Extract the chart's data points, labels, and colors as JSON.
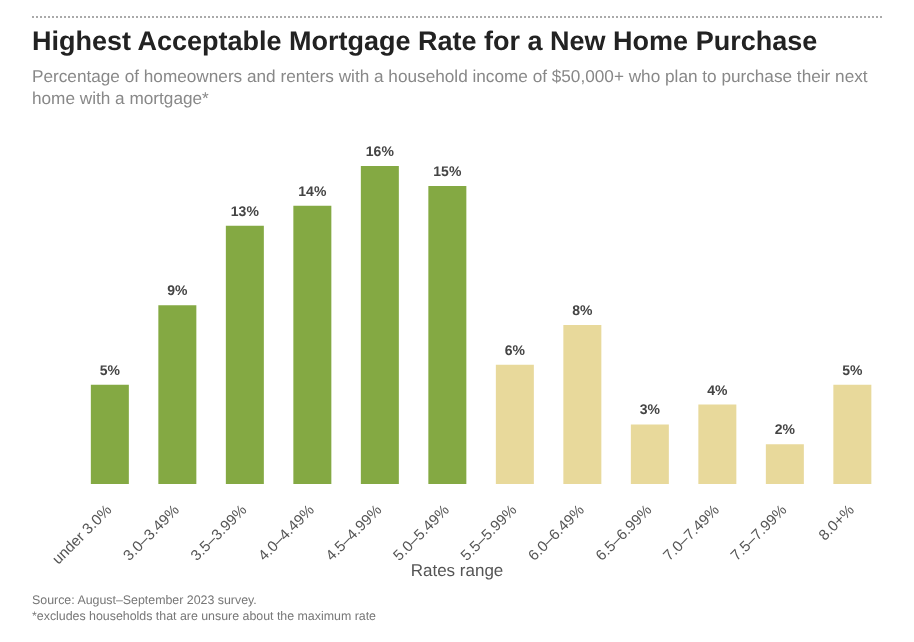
{
  "chart_data": {
    "type": "bar",
    "title": "Highest Acceptable Mortgage Rate for a New Home Purchase",
    "subtitle": "Percentage of homeowners and renters with a household income of $50,000+ who plan to purchase their next home with a mortgage*",
    "xlabel": "Rates range",
    "categories": [
      "under 3.0%",
      "3.0–3.49%",
      "3.5–3.99%",
      "4.0–4.49%",
      "4.5–4.99%",
      "5.0–5.49%",
      "5.5–5.99%",
      "6.0–6.49%",
      "6.5–6.99%",
      "7.0–7.49%",
      "7.5–7.99%",
      "8.0+%"
    ],
    "values": [
      5,
      9,
      13,
      14,
      16,
      15,
      6,
      8,
      3,
      4,
      2,
      5
    ],
    "colors": [
      "#84a943",
      "#84a943",
      "#84a943",
      "#84a943",
      "#84a943",
      "#84a943",
      "#e8d99b",
      "#e8d99b",
      "#e8d99b",
      "#e8d99b",
      "#e8d99b",
      "#e8d99b"
    ],
    "value_labels": [
      "5%",
      "9%",
      "13%",
      "14%",
      "16%",
      "15%",
      "6%",
      "8%",
      "3%",
      "4%",
      "2%",
      "5%"
    ],
    "annotations": [
      "Source: August–September 2023 survey.",
      "*excludes households that are unsure about the maximum rate"
    ]
  }
}
